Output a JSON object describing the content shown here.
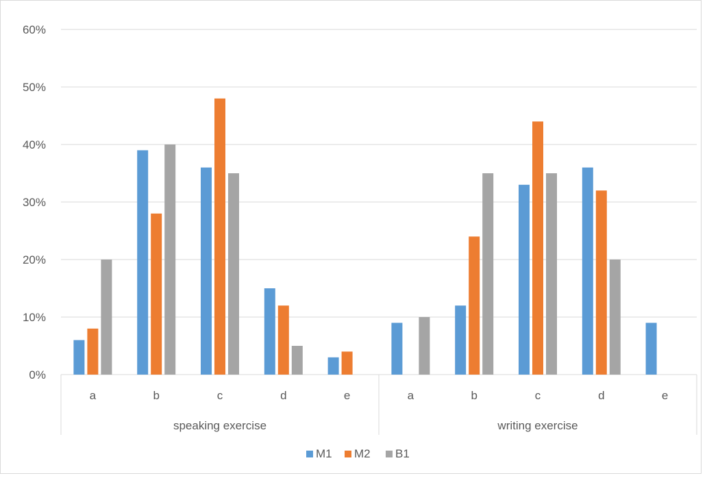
{
  "chart_data": {
    "type": "bar",
    "groups": [
      {
        "label": "speaking exercise",
        "categories": [
          "a",
          "b",
          "c",
          "d",
          "e"
        ]
      },
      {
        "label": "writing exercise",
        "categories": [
          "a",
          "b",
          "c",
          "d",
          "e"
        ]
      }
    ],
    "series": [
      {
        "name": "M1",
        "color": "#5b9bd5",
        "values": [
          6,
          39,
          36,
          15,
          3,
          9,
          12,
          33,
          36,
          9
        ]
      },
      {
        "name": "M2",
        "color": "#ed7d31",
        "values": [
          8,
          28,
          48,
          12,
          4,
          0,
          24,
          44,
          32,
          0
        ]
      },
      {
        "name": "B1",
        "color": "#a5a5a5",
        "values": [
          20,
          40,
          35,
          5,
          0,
          10,
          35,
          35,
          20,
          0
        ]
      }
    ],
    "y_ticks": [
      "0%",
      "10%",
      "20%",
      "30%",
      "40%",
      "50%",
      "60%"
    ],
    "ylim": [
      0,
      60
    ],
    "y_unit": "%",
    "grid": true,
    "legend_position": "bottom"
  }
}
